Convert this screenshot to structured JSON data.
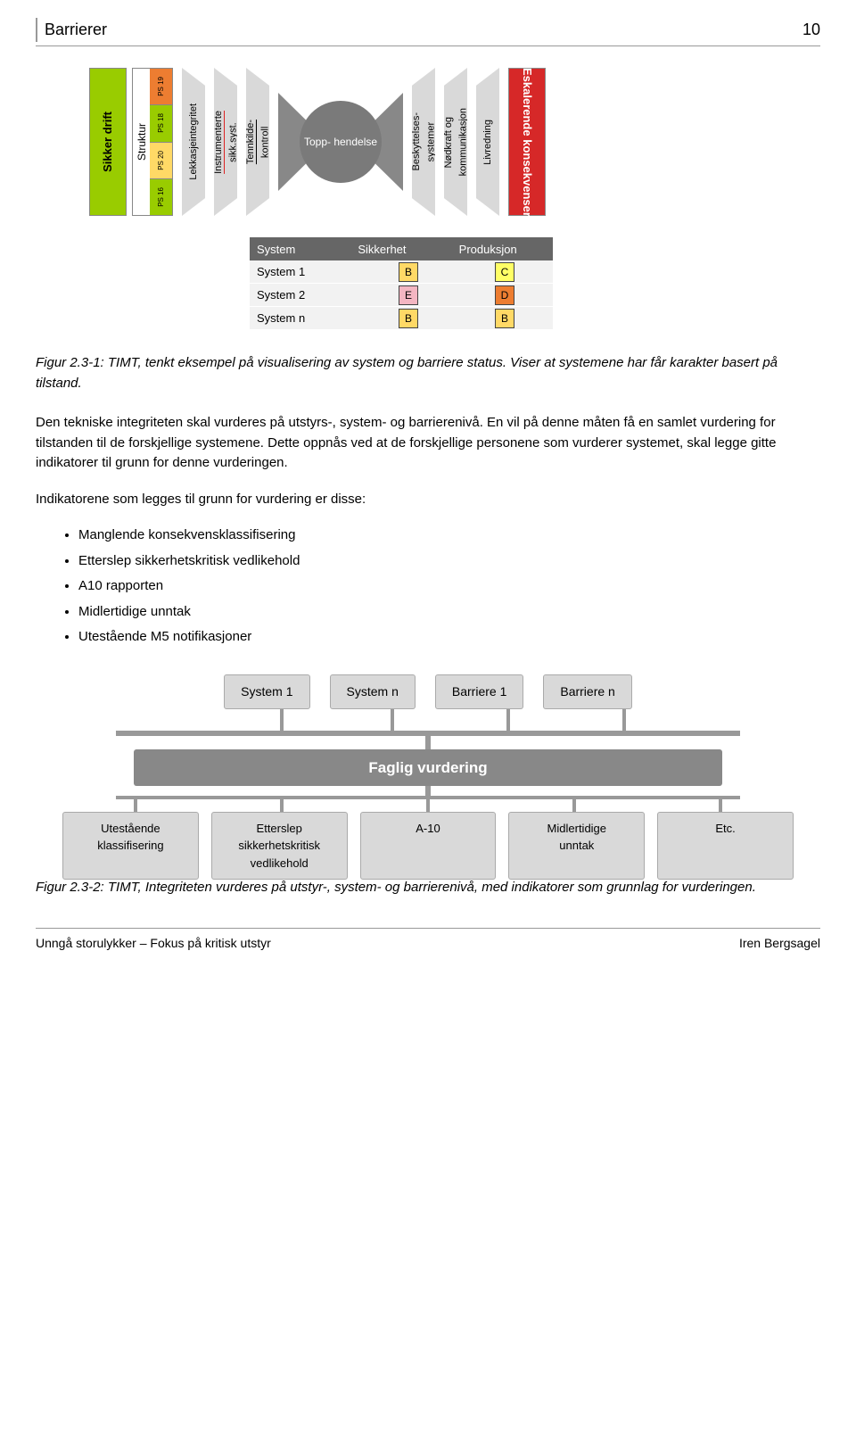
{
  "header": {
    "title": "Barrierer",
    "page_number": "10"
  },
  "fig1": {
    "left_block": {
      "label": "Sikker drift",
      "bg": "#99cc00"
    },
    "right_block": {
      "label": "Eskalerende konsekvenser",
      "bg": "#d62828"
    },
    "struktur": {
      "label": "Struktur",
      "cells": [
        {
          "label": "PS 19",
          "bg": "#ed7d31"
        },
        {
          "label": "PS 18",
          "bg": "#99cc00"
        },
        {
          "label": "PS 20",
          "bg": "#ffd966"
        },
        {
          "label": "PS 16",
          "bg": "#99cc00"
        }
      ]
    },
    "left_barriers": [
      {
        "label": "Lekkasjeintegritet",
        "decoration": "none"
      },
      {
        "label": "Instrumenterte\nsikk.syst.",
        "decoration": "red"
      },
      {
        "label": "Tennkilde-\nkontroll",
        "decoration": "dash"
      }
    ],
    "center": {
      "label": "Topp-\nhendelse"
    },
    "right_barriers": [
      {
        "label": "Beskyttelses-\nsystemer"
      },
      {
        "label": "Nødkraft og\nkommunikasjon"
      },
      {
        "label": "Livredning"
      }
    ],
    "table": {
      "headers": [
        "System",
        "Sikkerhet",
        "Produksjon"
      ],
      "rows": [
        {
          "name": "System 1",
          "sik": {
            "label": "B",
            "bg": "#ffd966"
          },
          "prod": {
            "label": "C",
            "bg": "#ffff66"
          }
        },
        {
          "name": "System 2",
          "sik": {
            "label": "E",
            "bg": "#f4b6c2"
          },
          "prod": {
            "label": "D",
            "bg": "#ed7d31"
          }
        },
        {
          "name": "System n",
          "sik": {
            "label": "B",
            "bg": "#ffd966"
          },
          "prod": {
            "label": "B",
            "bg": "#ffd966"
          }
        }
      ]
    }
  },
  "caption1": "Figur 2.3-1: TIMT, tenkt eksempel på visualisering av system og barriere status. Viser at systemene har får karakter basert på tilstand.",
  "para1": "Den tekniske integriteten skal vurderes på utstyrs-, system- og barrierenivå. En vil på denne måten få en samlet vurdering for tilstanden til de forskjellige systemene. Dette oppnås ved at de forskjellige personene som vurderer systemet, skal legge gitte indikatorer til grunn for denne vurderingen.",
  "para2": "Indikatorene som legges til grunn for vurdering er disse:",
  "bullets": [
    "Manglende konsekvensklassifisering",
    "Etterslep sikkerhetskritisk vedlikehold",
    "A10 rapporten",
    "Midlertidige unntak",
    "Utestående M5 notifikasjoner"
  ],
  "fig2": {
    "top": [
      "System 1",
      "System n",
      "Barriere 1",
      "Barriere n"
    ],
    "mid": "Faglig vurdering",
    "bottom": [
      "Utestående\nklassifisering",
      "Etterslep\nsikkerhetskritisk\nvedlikehold",
      "A-10",
      "Midlertidige\nunntak",
      "Etc."
    ]
  },
  "caption2": "Figur 2.3-2: TIMT, Integriteten vurderes på utstyr-, system- og barrierenivå, med indikatorer som grunnlag for vurderingen.",
  "footer": {
    "left": "Unngå storulykker – Fokus på kritisk utstyr",
    "right": "Iren Bergsagel"
  }
}
